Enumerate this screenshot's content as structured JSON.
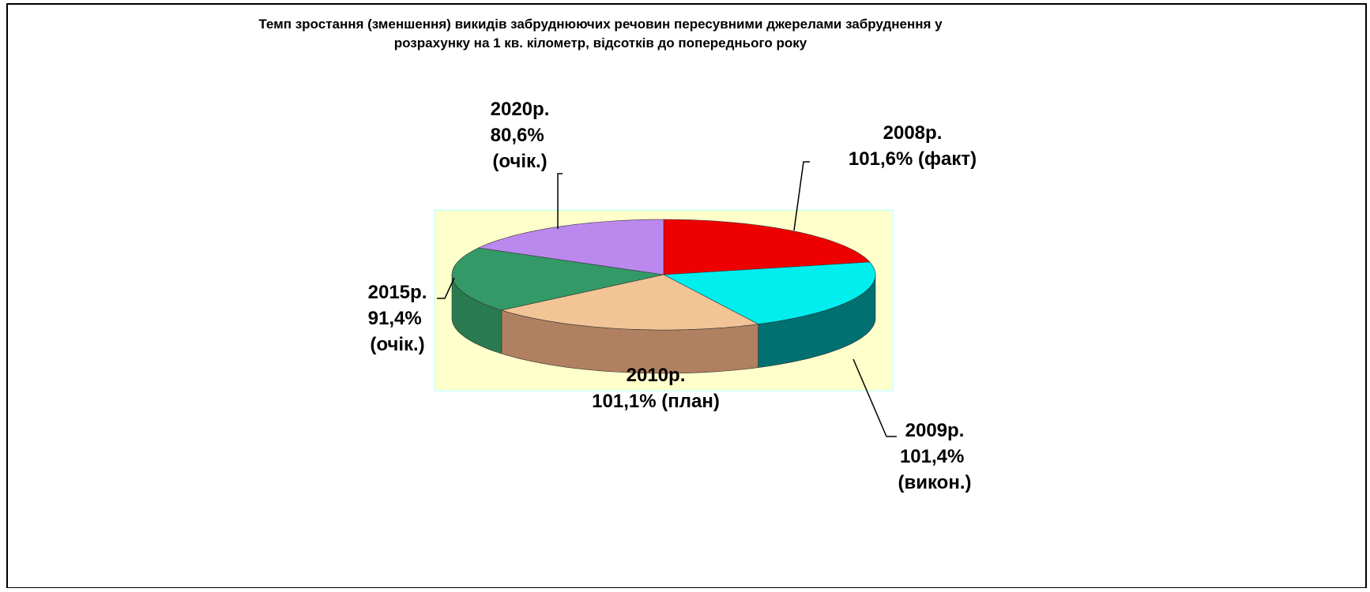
{
  "chart_data": {
    "type": "pie",
    "title": [
      "Темп зростання (зменшення) викидів забруднюючих речовин пересувними джерелами забруднення у",
      "розрахунку на 1 кв. кілометр, відсотків до попереднього року"
    ],
    "categories": [
      "2008р.",
      "2009р.",
      "2010р.",
      "2015р.",
      "2020р."
    ],
    "values": [
      101.6,
      101.4,
      101.1,
      91.4,
      80.6
    ],
    "value_labels": [
      "101,6% (факт)",
      "101,4% (викон.)",
      "101,1% (план)",
      "91,4% (очік.)",
      "80,6% (очік.)"
    ],
    "colors": [
      "#ee0000",
      "#00eeee",
      "#f2c496",
      "#339966",
      "#bb88ee"
    ],
    "side_colors": [
      "#990000",
      "#007070",
      "#b08060",
      "#2a7a50",
      "#8055b0"
    ]
  }
}
